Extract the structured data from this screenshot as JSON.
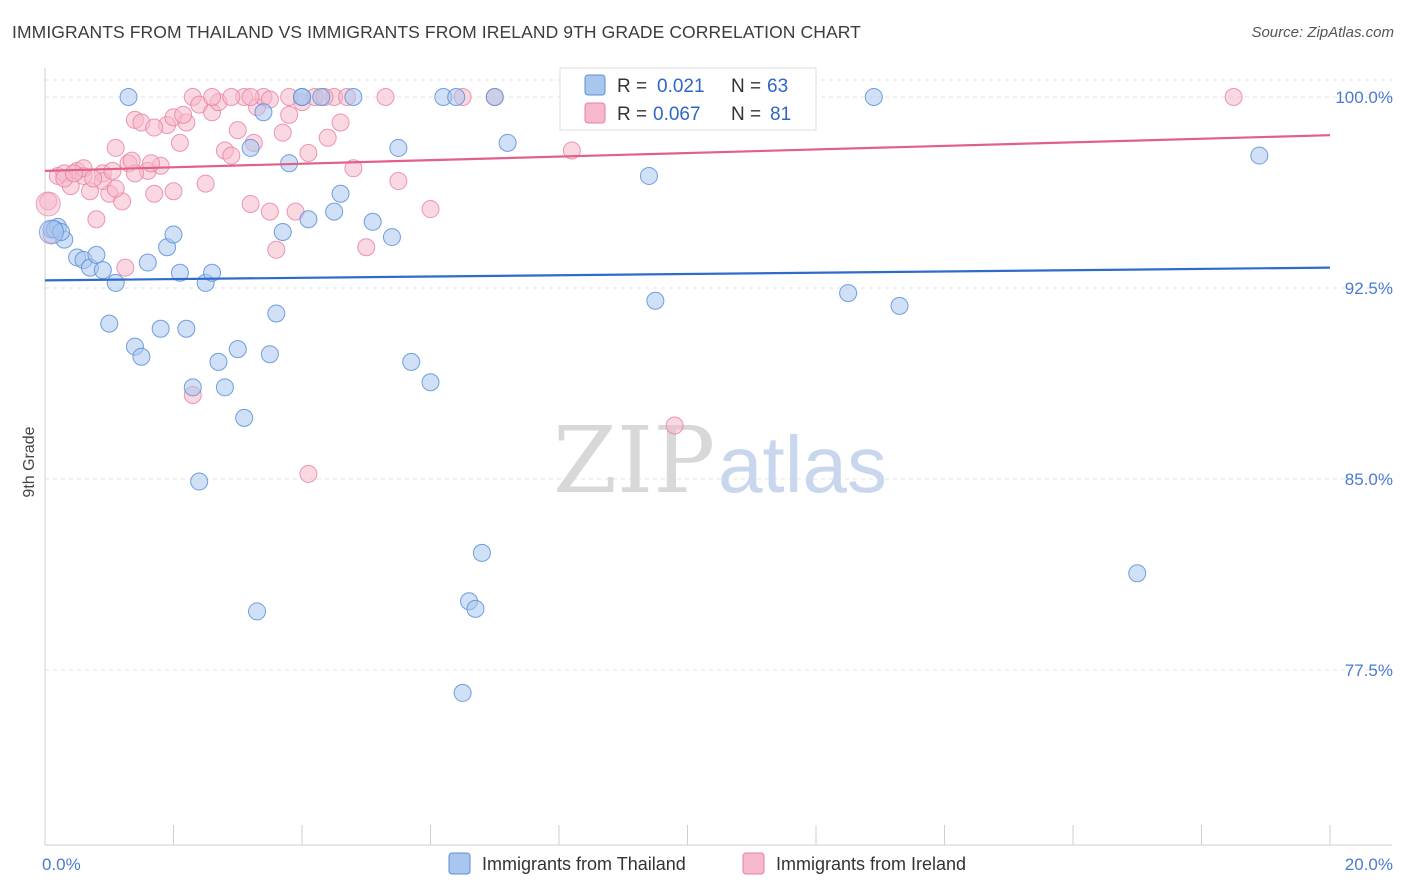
{
  "title": "IMMIGRANTS FROM THAILAND VS IMMIGRANTS FROM IRELAND 9TH GRADE CORRELATION CHART",
  "source": "Source: ZipAtlas.com",
  "watermark": {
    "zip": "ZIP",
    "atlas": "atlas"
  },
  "colors": {
    "thailand_fill": "#a9c6ef",
    "thailand_stroke": "#5b8fd8",
    "thailand_line": "#2f6cc9",
    "ireland_fill": "#f6b8cb",
    "ireland_stroke": "#e77fa0",
    "ireland_line": "#e0608a",
    "grid": "#e3e3e3",
    "tick_label": "#4a7bd0"
  },
  "legend": {
    "rows": [
      {
        "r_label": "R =",
        "r_value": "0.021",
        "n_label": "N =",
        "n_value": "63"
      },
      {
        "r_label": "R =",
        "r_value": "0.067",
        "n_label": "N =",
        "n_value": "81"
      }
    ]
  },
  "chart_data": {
    "type": "scatter",
    "title": "IMMIGRANTS FROM THAILAND VS IMMIGRANTS FROM IRELAND 9TH GRADE CORRELATION CHART",
    "xlabel": "",
    "ylabel": "9th Grade",
    "xlim": [
      0,
      20
    ],
    "ylim": [
      70,
      101.5
    ],
    "x_tick_labels": [
      "0.0%",
      "20.0%"
    ],
    "y_ticks": [
      77.5,
      85.0,
      92.5,
      100.0
    ],
    "y_tick_labels": [
      "77.5%",
      "85.0%",
      "92.5%",
      "100.0%"
    ],
    "grid": true,
    "legend_position": "top-center",
    "series": [
      {
        "name": "Immigrants from Thailand",
        "R": 0.021,
        "N": 63,
        "trend": {
          "x": [
            0,
            20
          ],
          "y": [
            92.8,
            93.3
          ]
        },
        "points": [
          [
            0.1,
            94.8
          ],
          [
            0.2,
            94.9
          ],
          [
            0.3,
            94.4
          ],
          [
            0.5,
            93.7
          ],
          [
            0.6,
            93.6
          ],
          [
            0.7,
            93.3
          ],
          [
            0.8,
            93.8
          ],
          [
            0.9,
            93.2
          ],
          [
            1.0,
            91.1
          ],
          [
            1.1,
            92.7
          ],
          [
            1.4,
            90.2
          ],
          [
            1.5,
            89.8
          ],
          [
            1.6,
            93.5
          ],
          [
            1.8,
            90.9
          ],
          [
            1.9,
            94.1
          ],
          [
            2.0,
            94.6
          ],
          [
            2.1,
            93.1
          ],
          [
            2.2,
            90.9
          ],
          [
            2.3,
            88.6
          ],
          [
            2.4,
            84.9
          ],
          [
            2.5,
            92.7
          ],
          [
            2.6,
            93.1
          ],
          [
            2.7,
            89.6
          ],
          [
            2.8,
            88.6
          ],
          [
            3.0,
            90.1
          ],
          [
            3.1,
            87.4
          ],
          [
            3.2,
            98.0
          ],
          [
            3.3,
            79.8
          ],
          [
            3.4,
            99.4
          ],
          [
            3.5,
            89.9
          ],
          [
            3.6,
            91.5
          ],
          [
            3.7,
            94.7
          ],
          [
            3.8,
            97.4
          ],
          [
            4.0,
            100.0
          ],
          [
            4.1,
            95.2
          ],
          [
            4.3,
            100.0
          ],
          [
            4.5,
            95.5
          ],
          [
            4.6,
            96.2
          ],
          [
            4.8,
            100.0
          ],
          [
            5.1,
            95.1
          ],
          [
            5.4,
            94.5
          ],
          [
            5.5,
            98.0
          ],
          [
            5.7,
            89.6
          ],
          [
            6.0,
            88.8
          ],
          [
            6.2,
            100.0
          ],
          [
            6.4,
            100.0
          ],
          [
            6.5,
            76.6
          ],
          [
            6.6,
            80.2
          ],
          [
            6.7,
            79.9
          ],
          [
            6.8,
            82.1
          ],
          [
            7.0,
            100.0
          ],
          [
            7.2,
            98.2
          ],
          [
            9.4,
            96.9
          ],
          [
            9.5,
            92.0
          ],
          [
            12.5,
            92.3
          ],
          [
            12.9,
            100.0
          ],
          [
            13.3,
            91.8
          ],
          [
            17.0,
            81.3
          ],
          [
            18.9,
            97.7
          ],
          [
            0.15,
            94.8
          ],
          [
            0.25,
            94.7
          ],
          [
            1.3,
            100.0
          ],
          [
            4.0,
            100.0
          ]
        ]
      },
      {
        "name": "Immigrants from Ireland",
        "R": 0.067,
        "N": 81,
        "trend": {
          "x": [
            0,
            20
          ],
          "y": [
            97.1,
            98.5
          ]
        },
        "points": [
          [
            0.05,
            95.9
          ],
          [
            0.1,
            94.6
          ],
          [
            0.2,
            96.9
          ],
          [
            0.3,
            97.0
          ],
          [
            0.4,
            96.5
          ],
          [
            0.5,
            97.1
          ],
          [
            0.6,
            96.9
          ],
          [
            0.7,
            96.3
          ],
          [
            0.8,
            95.2
          ],
          [
            0.9,
            97.0
          ],
          [
            1.0,
            96.2
          ],
          [
            1.1,
            98.0
          ],
          [
            1.2,
            95.9
          ],
          [
            1.3,
            97.4
          ],
          [
            1.4,
            99.1
          ],
          [
            1.5,
            99.0
          ],
          [
            1.6,
            97.1
          ],
          [
            1.7,
            96.2
          ],
          [
            1.8,
            97.3
          ],
          [
            1.9,
            98.9
          ],
          [
            2.0,
            99.2
          ],
          [
            2.1,
            98.2
          ],
          [
            2.2,
            99.0
          ],
          [
            2.3,
            100.0
          ],
          [
            2.4,
            99.7
          ],
          [
            2.5,
            96.6
          ],
          [
            2.6,
            99.4
          ],
          [
            2.7,
            99.8
          ],
          [
            2.8,
            97.9
          ],
          [
            2.9,
            97.7
          ],
          [
            3.0,
            98.7
          ],
          [
            3.1,
            100.0
          ],
          [
            3.2,
            95.8
          ],
          [
            3.3,
            99.6
          ],
          [
            3.4,
            100.0
          ],
          [
            3.5,
            95.5
          ],
          [
            3.6,
            94.0
          ],
          [
            3.7,
            98.6
          ],
          [
            3.8,
            99.3
          ],
          [
            3.9,
            95.5
          ],
          [
            4.0,
            99.8
          ],
          [
            4.1,
            97.8
          ],
          [
            4.2,
            100.0
          ],
          [
            4.4,
            98.4
          ],
          [
            4.5,
            100.0
          ],
          [
            4.6,
            99.0
          ],
          [
            4.7,
            100.0
          ],
          [
            4.8,
            97.2
          ],
          [
            5.0,
            94.1
          ],
          [
            5.5,
            96.7
          ],
          [
            6.0,
            95.6
          ],
          [
            6.5,
            100.0
          ],
          [
            7.0,
            100.0
          ],
          [
            9.8,
            87.1
          ],
          [
            11.5,
            100.0
          ],
          [
            18.5,
            100.0
          ],
          [
            0.3,
            96.8
          ],
          [
            0.6,
            97.2
          ],
          [
            0.9,
            96.7
          ],
          [
            1.1,
            96.4
          ],
          [
            1.4,
            97.0
          ],
          [
            1.7,
            98.8
          ],
          [
            2.0,
            96.3
          ],
          [
            2.3,
            88.3
          ],
          [
            2.6,
            100.0
          ],
          [
            2.9,
            100.0
          ],
          [
            3.2,
            100.0
          ],
          [
            3.5,
            99.9
          ],
          [
            3.8,
            100.0
          ],
          [
            4.1,
            85.2
          ],
          [
            1.25,
            93.3
          ],
          [
            0.45,
            97.0
          ],
          [
            0.75,
            96.8
          ],
          [
            1.05,
            97.1
          ],
          [
            1.35,
            97.5
          ],
          [
            1.65,
            97.4
          ],
          [
            2.15,
            99.3
          ],
          [
            3.25,
            98.2
          ],
          [
            4.35,
            100.0
          ],
          [
            5.3,
            100.0
          ],
          [
            8.2,
            97.9
          ]
        ]
      }
    ]
  },
  "bottom_legend": {
    "thailand_label": "Immigrants from Thailand",
    "ireland_label": "Immigrants from Ireland"
  }
}
